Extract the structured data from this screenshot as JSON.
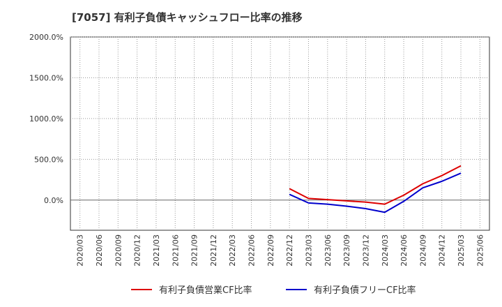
{
  "chart_data": {
    "type": "line",
    "title": "[7057]  有利子負債キャッシュフロー比率の推移",
    "xlabel": "",
    "ylabel": "",
    "ylim": [
      -370,
      2000
    ],
    "yticks": [
      0,
      500,
      1000,
      1500,
      2000
    ],
    "ytick_labels": [
      "0.0%",
      "500.0%",
      "1000.0%",
      "1500.0%",
      "2000.0%"
    ],
    "categories": [
      "2020/03",
      "2020/06",
      "2020/09",
      "2020/12",
      "2021/03",
      "2021/06",
      "2021/09",
      "2021/12",
      "2022/03",
      "2022/06",
      "2022/09",
      "2022/12",
      "2023/03",
      "2023/06",
      "2023/09",
      "2023/12",
      "2024/03",
      "2024/06",
      "2024/09",
      "2024/12",
      "2025/03",
      "2025/06"
    ],
    "series": [
      {
        "name": "有利子負債営業CF比率",
        "color": "#dd0000",
        "values": [
          null,
          null,
          null,
          null,
          null,
          null,
          null,
          null,
          null,
          null,
          null,
          140,
          20,
          5,
          -10,
          -25,
          -50,
          60,
          200,
          300,
          420,
          null
        ]
      },
      {
        "name": "有利子負債フリーCF比率",
        "color": "#0000cc",
        "values": [
          null,
          null,
          null,
          null,
          null,
          null,
          null,
          null,
          null,
          null,
          null,
          70,
          -35,
          -50,
          -75,
          -105,
          -150,
          -15,
          150,
          230,
          330,
          null
        ]
      }
    ],
    "grid": true,
    "legend": "bottom"
  }
}
